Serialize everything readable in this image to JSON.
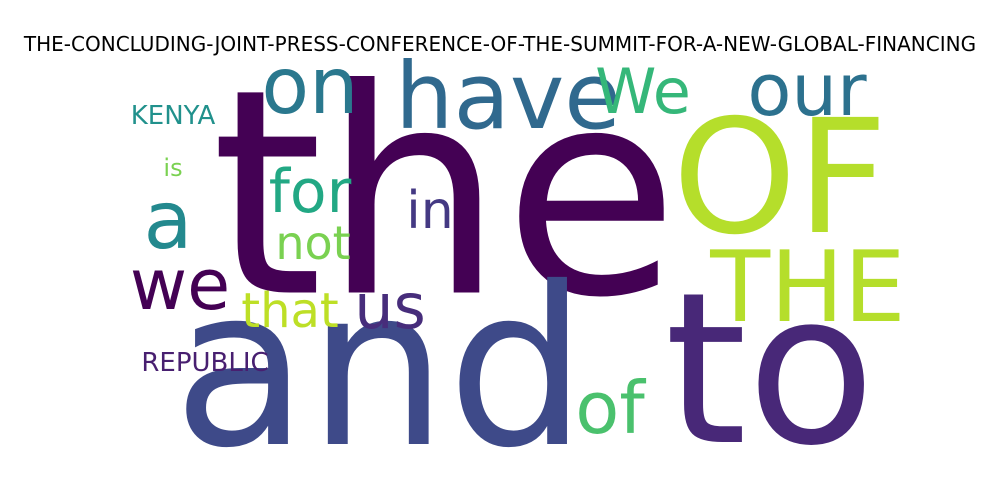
{
  "title": "THE-CONCLUDING-JOINT-PRESS-CONFERENCE-OF-THE-SUMMIT-FOR-A-NEW-GLOBAL-FINANCING",
  "words": [
    {
      "text": "the",
      "color": "#440154"
    },
    {
      "text": "and",
      "color": "#3e4a89"
    },
    {
      "text": "to",
      "color": "#482878"
    },
    {
      "text": "OF",
      "color": "#b5de2b"
    },
    {
      "text": "THE",
      "color": "#b5de2b"
    },
    {
      "text": "have",
      "color": "#30698e"
    },
    {
      "text": "on",
      "color": "#2a788e"
    },
    {
      "text": "our",
      "color": "#2c718e"
    },
    {
      "text": "We",
      "color": "#35b779"
    },
    {
      "text": "a",
      "color": "#23898e"
    },
    {
      "text": "for",
      "color": "#22a884"
    },
    {
      "text": "in",
      "color": "#443983"
    },
    {
      "text": "not",
      "color": "#7ad151"
    },
    {
      "text": "we",
      "color": "#440154"
    },
    {
      "text": "us",
      "color": "#472d7b"
    },
    {
      "text": "that",
      "color": "#bddf26"
    },
    {
      "text": "of",
      "color": "#4ac16d"
    },
    {
      "text": "KENYA",
      "color": "#21918c"
    },
    {
      "text": "is",
      "color": "#7ad151"
    },
    {
      "text": "REPUBLIC",
      "color": "#481f70"
    }
  ]
}
